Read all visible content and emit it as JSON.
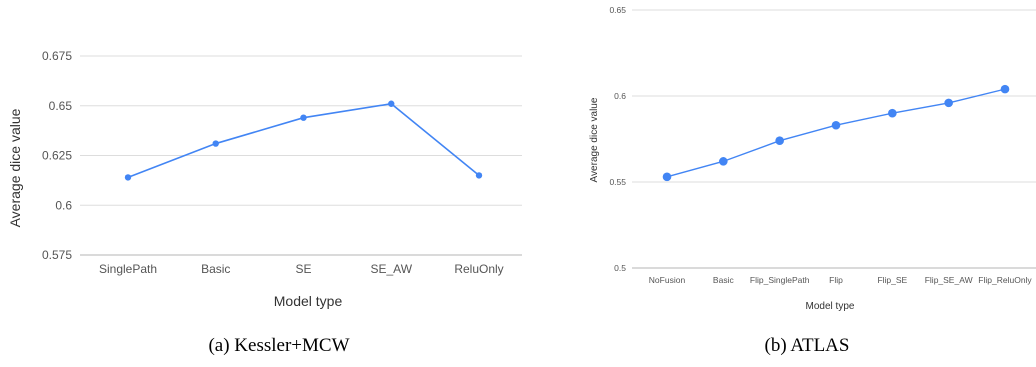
{
  "chart_data": [
    {
      "type": "line",
      "caption": "(a) Kessler+MCW",
      "xlabel": "Model type",
      "ylabel": "Average dice value",
      "categories": [
        "SinglePath",
        "Basic",
        "SE",
        "SE_AW",
        "ReluOnly"
      ],
      "values": [
        0.614,
        0.631,
        0.644,
        0.651,
        0.615
      ],
      "ylim": [
        0.575,
        0.675
      ],
      "yticks": [
        "0.575",
        "0.6",
        "0.625",
        "0.65",
        "0.675"
      ],
      "grid": true,
      "color": "#4285f4"
    },
    {
      "type": "line",
      "caption": "(b) ATLAS",
      "xlabel": "Model type",
      "ylabel": "Average dice value",
      "categories": [
        "NoFusion",
        "Basic",
        "Flip_SinglePath",
        "Flip",
        "Flip_SE",
        "Flip_SE_AW",
        "Flip_ReluOnly"
      ],
      "values": [
        0.553,
        0.562,
        0.574,
        0.583,
        0.59,
        0.596,
        0.604
      ],
      "ylim": [
        0.5,
        0.65
      ],
      "yticks": [
        "0.5",
        "0.55",
        "0.6",
        "0.65"
      ],
      "grid": true,
      "color": "#4285f4"
    }
  ]
}
